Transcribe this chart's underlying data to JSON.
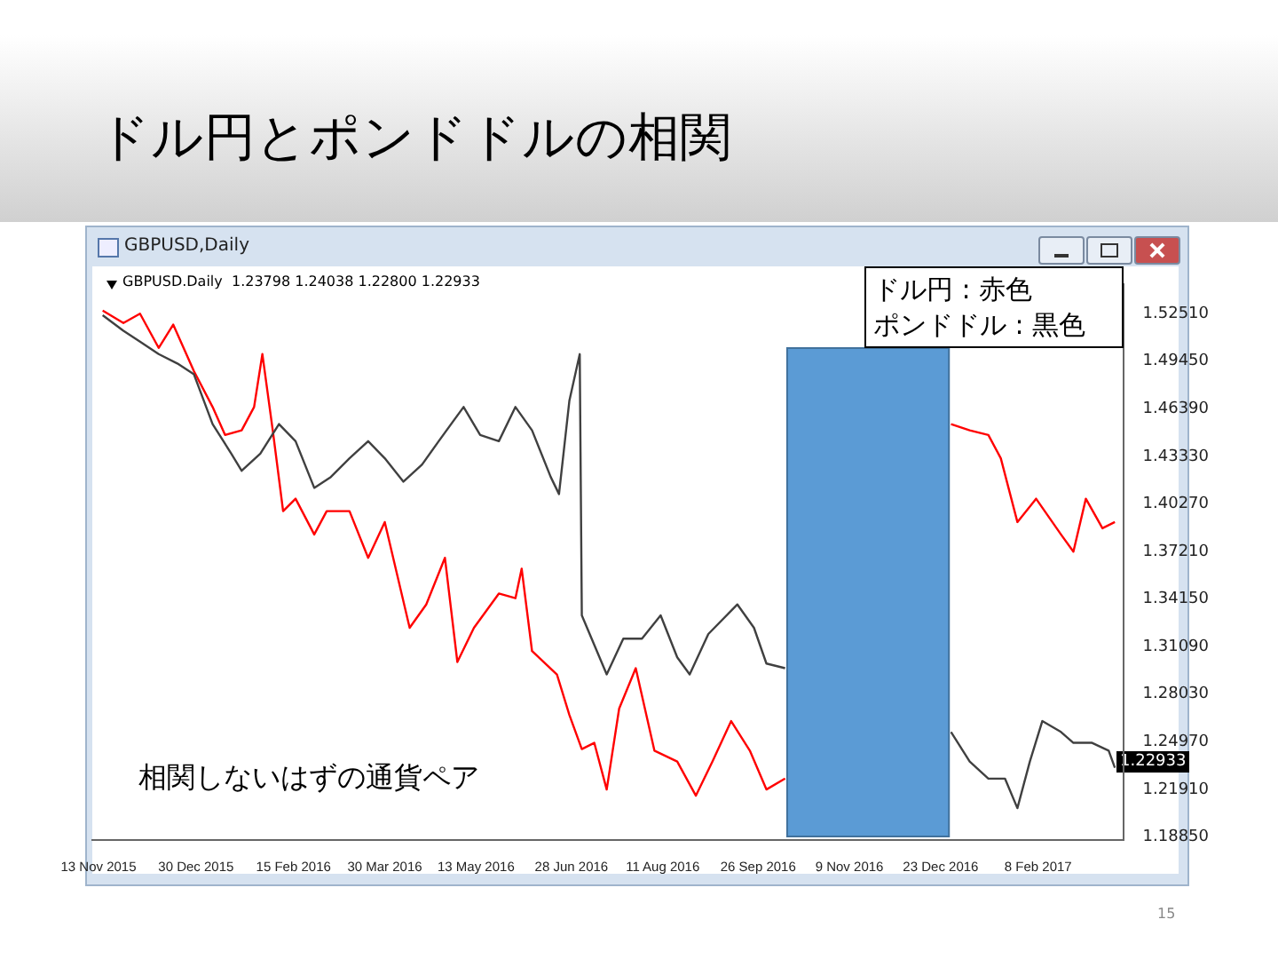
{
  "chart_data": {
    "type": "line",
    "title": "ドル円とポンドドルの相関",
    "x": [
      "2015-11-15",
      "2015-11-25",
      "2015-12-03",
      "2015-12-12",
      "2015-12-21",
      "2015-12-29",
      "2016-01-07",
      "2016-01-16",
      "2016-01-21",
      "2016-01-30",
      "2016-02-08",
      "2016-02-16",
      "2016-02-25",
      "2016-03-04",
      "2016-03-13",
      "2016-03-22",
      "2016-03-30",
      "2016-04-08",
      "2016-04-17",
      "2016-04-25",
      "2016-05-07",
      "2016-05-15",
      "2016-05-24",
      "2016-06-01",
      "2016-06-09",
      "2016-06-18",
      "2016-06-22",
      "2016-06-27",
      "2016-07-02",
      "2016-07-03",
      "2016-07-15",
      "2016-07-23",
      "2016-08-01",
      "2016-08-10",
      "2016-08-18",
      "2016-08-24",
      "2016-09-02",
      "2016-09-16",
      "2016-09-24",
      "2016-09-30",
      "2016-10-09",
      "2016-11-18",
      "2016-12-28",
      "2017-01-06",
      "2017-01-15",
      "2017-01-23",
      "2017-01-29",
      "2017-02-04",
      "2017-02-10",
      "2017-02-19",
      "2017-02-25",
      "2017-03-06",
      "2017-03-14",
      "2017-03-17"
    ],
    "series": [
      {
        "color": "#404040",
        "values": [
          1.524,
          1.514,
          1.507,
          1.499,
          1.493,
          1.486,
          1.454,
          1.435,
          1.424,
          1.435,
          1.454,
          1.443,
          1.413,
          1.42,
          1.432,
          1.443,
          1.432,
          1.417,
          1.428,
          1.443,
          1.465,
          1.447,
          1.443,
          1.465,
          1.45,
          1.42,
          1.409,
          1.469,
          1.499,
          1.331,
          1.293,
          1.316,
          1.316,
          1.331,
          1.304,
          1.293,
          1.319,
          1.338,
          1.323,
          1.3,
          1.297,
          null,
          1.256,
          1.237,
          1.226,
          1.226,
          1.207,
          1.237,
          1.263,
          1.256,
          1.249,
          1.249,
          1.244,
          1.233
        ]
      },
      {
        "color": "#ff0000",
        "x": [
          "2015-11-15",
          "2015-11-25",
          "2015-12-03",
          "2015-12-12",
          "2015-12-19",
          "2015-12-29",
          "2016-01-07",
          "2016-01-13",
          "2016-01-21",
          "2016-01-27",
          "2016-01-31",
          "2016-02-05",
          "2016-02-10",
          "2016-02-16",
          "2016-02-25",
          "2016-03-02",
          "2016-03-13",
          "2016-03-22",
          "2016-03-30",
          "2016-04-11",
          "2016-04-19",
          "2016-04-28",
          "2016-05-04",
          "2016-05-12",
          "2016-05-24",
          "2016-06-01",
          "2016-06-04",
          "2016-06-09",
          "2016-06-21",
          "2016-06-27",
          "2016-07-03",
          "2016-07-09",
          "2016-07-15",
          "2016-07-21",
          "2016-07-29",
          "2016-08-07",
          "2016-08-18",
          "2016-08-27",
          "2016-09-04",
          "2016-09-13",
          "2016-09-22",
          "2016-09-30",
          "2016-10-09",
          "2016-11-18",
          "2016-12-28",
          "2017-01-06",
          "2017-01-15",
          "2017-01-21",
          "2017-01-29",
          "2017-02-07",
          "2017-02-19",
          "2017-02-25",
          "2017-03-03",
          "2017-03-11",
          "2017-03-17"
        ],
        "values": [
          1.527,
          1.519,
          1.525,
          1.503,
          1.518,
          1.488,
          1.465,
          1.447,
          1.45,
          1.465,
          1.499,
          1.45,
          1.398,
          1.406,
          1.383,
          1.398,
          1.398,
          1.368,
          1.391,
          1.323,
          1.338,
          1.368,
          1.301,
          1.323,
          1.345,
          1.342,
          1.361,
          1.308,
          1.293,
          1.267,
          1.245,
          1.249,
          1.219,
          1.271,
          1.297,
          1.244,
          1.237,
          1.215,
          1.237,
          1.263,
          1.244,
          1.219,
          1.226,
          null,
          1.454,
          1.45,
          1.447,
          1.432,
          1.391,
          1.406,
          1.383,
          1.372,
          1.406,
          1.387,
          1.391
        ]
      }
    ],
    "xlim": [
      "2015-11-10",
      "2017-03-21"
    ],
    "xticks": [
      {
        "value": "2015-11-13",
        "label": "13 Nov 2015"
      },
      {
        "value": "2015-12-30",
        "label": "30 Dec 2015"
      },
      {
        "value": "2016-02-15",
        "label": "15 Feb 2016"
      },
      {
        "value": "2016-03-30",
        "label": "30 Mar 2016"
      },
      {
        "value": "2016-05-13",
        "label": "13 May 2016"
      },
      {
        "value": "2016-06-28",
        "label": "28 Jun 2016"
      },
      {
        "value": "2016-08-11",
        "label": "11 Aug 2016"
      },
      {
        "value": "2016-09-26",
        "label": "26 Sep 2016"
      },
      {
        "value": "2016-11-09",
        "label": "9 Nov 2016"
      },
      {
        "value": "2016-12-23",
        "label": "23 Dec 2016"
      },
      {
        "value": "2017-02-08",
        "label": "8 Feb 2017"
      }
    ],
    "ylim": [
      1.1865,
      1.544
    ],
    "yticks": [
      {
        "value": 1.1885,
        "label": "1.18850"
      },
      {
        "value": 1.2191,
        "label": "1.21910"
      },
      {
        "value": 1.2497,
        "label": "1.24970"
      },
      {
        "value": 1.2803,
        "label": "1.28030"
      },
      {
        "value": 1.3109,
        "label": "1.31090"
      },
      {
        "value": 1.3415,
        "label": "1.34150"
      },
      {
        "value": 1.3721,
        "label": "1.37210"
      },
      {
        "value": 1.4027,
        "label": "1.40270"
      },
      {
        "value": 1.4333,
        "label": "1.43330"
      },
      {
        "value": 1.4639,
        "label": "1.46390"
      },
      {
        "value": 1.4945,
        "label": "1.49450"
      },
      {
        "value": 1.5251,
        "label": "1.52510"
      }
    ],
    "bands": [
      {
        "axis": "x",
        "from": "2016-10-10",
        "to": "2016-12-27",
        "color": "#5b9bd5"
      }
    ],
    "annotations": [
      "GBPUSD,Daily",
      "GBPUSD.Daily  1.23798 1.24038 1.22800 1.22933",
      "ドル円 : 赤色",
      "ポンドドル : 黒色",
      "相関しないはずの通貨ペア",
      "1.22933",
      "15"
    ]
  }
}
